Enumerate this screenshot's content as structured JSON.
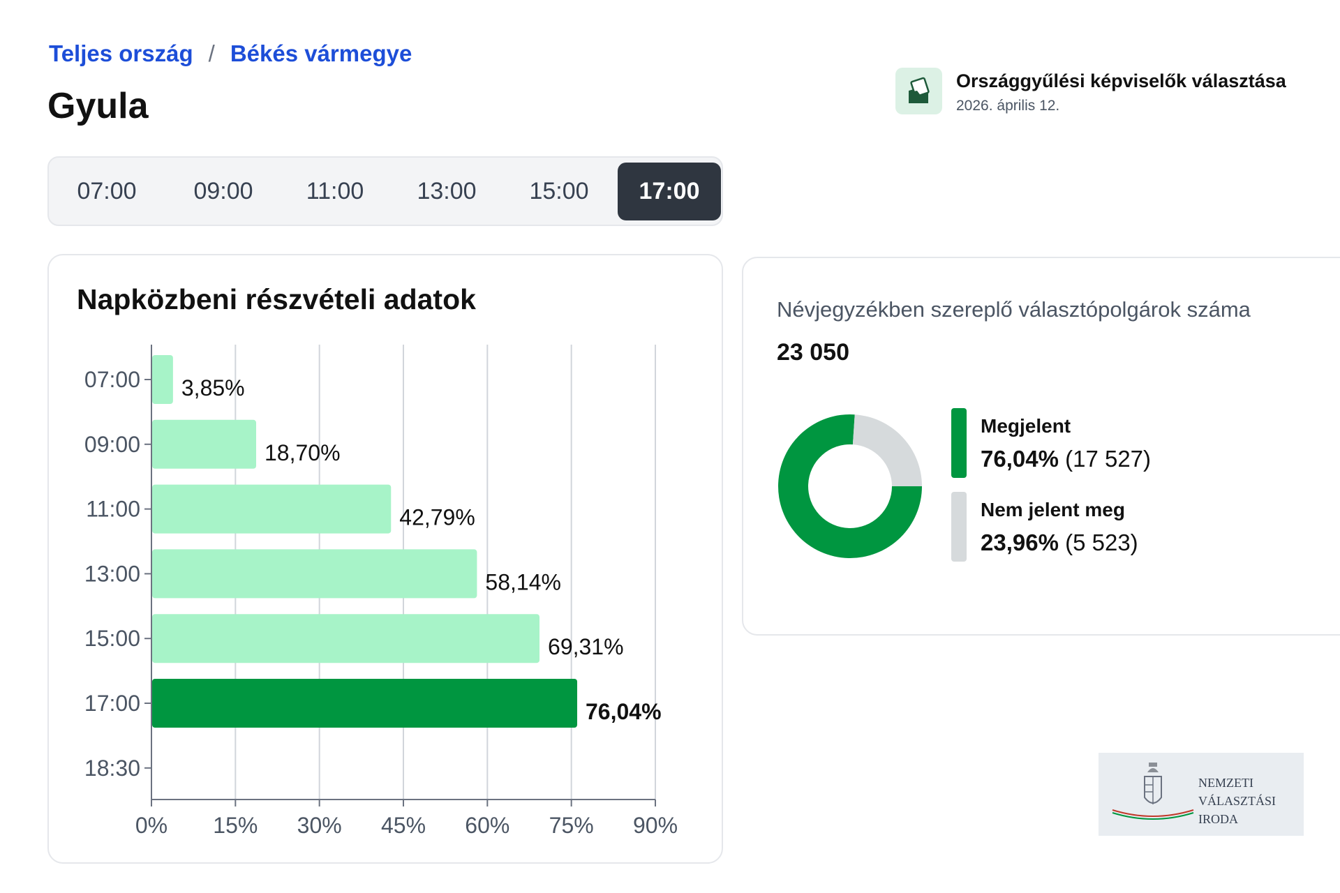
{
  "breadcrumb": {
    "items": [
      "Teljes ország",
      "Békés vármegye"
    ],
    "separator": "/"
  },
  "page_title": "Gyula",
  "election": {
    "title": "Országgyűlési képviselők választása",
    "date": "2026. április 12.",
    "icon": "ballot-icon"
  },
  "time_tabs": {
    "items": [
      "07:00",
      "09:00",
      "11:00",
      "13:00",
      "15:00",
      "17:00"
    ],
    "active": "17:00"
  },
  "turnout_card": {
    "title": "Napközbeni részvételi adatok"
  },
  "chart_data": {
    "type": "bar",
    "orientation": "horizontal",
    "title": "Napközbeni részvételi adatok",
    "categories": [
      "07:00",
      "09:00",
      "11:00",
      "13:00",
      "15:00",
      "17:00",
      "18:30"
    ],
    "values": [
      3.85,
      18.7,
      42.79,
      58.14,
      69.31,
      76.04,
      null
    ],
    "value_labels": [
      "3,85%",
      "18,70%",
      "42,79%",
      "58,14%",
      "69,31%",
      "76,04%",
      ""
    ],
    "highlighted": "17:00",
    "x_ticks": [
      "0%",
      "15%",
      "30%",
      "45%",
      "60%",
      "75%",
      "90%"
    ],
    "xlim": [
      0,
      90
    ],
    "grid": true,
    "colors": {
      "bar": "#a7f3c8",
      "highlight": "#009640"
    }
  },
  "voters": {
    "label": "Névjegyzékben szereplő választópolgárok száma",
    "total": "23 050",
    "donut": [
      {
        "name": "Megjelent",
        "percent_label": "76,04%",
        "count_label": "(17 527)",
        "value": 76.04,
        "color": "#009640"
      },
      {
        "name": "Nem jelent meg",
        "percent_label": "23,96%",
        "count_label": "(5 523)",
        "value": 23.96,
        "color": "#d6dadc"
      }
    ]
  },
  "logo": {
    "lines": [
      "NEMZETI",
      "VÁLASZTÁSI",
      "IRODA"
    ]
  }
}
